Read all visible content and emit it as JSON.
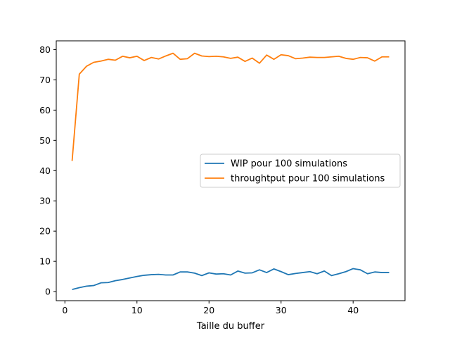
{
  "chart_data": {
    "type": "line",
    "title": "",
    "xlabel": "Taille du buffer",
    "ylabel": "",
    "xlim": [
      -1.2,
      47.2
    ],
    "ylim": [
      -3.0,
      82.9
    ],
    "xticks": [
      0,
      10,
      20,
      30,
      40
    ],
    "yticks": [
      0,
      10,
      20,
      30,
      40,
      50,
      60,
      70,
      80
    ],
    "grid": false,
    "legend_position": "center-right",
    "x": [
      1,
      2,
      3,
      4,
      5,
      6,
      7,
      8,
      9,
      10,
      11,
      12,
      13,
      14,
      15,
      16,
      17,
      18,
      19,
      20,
      21,
      22,
      23,
      24,
      25,
      26,
      27,
      28,
      29,
      30,
      31,
      32,
      33,
      34,
      35,
      36,
      37,
      38,
      39,
      40,
      41,
      42,
      43,
      44,
      45
    ],
    "series": [
      {
        "name": "WIP pour 100 simulations",
        "color": "#1f77b4",
        "values": [
          0.7,
          1.3,
          1.8,
          2.0,
          2.9,
          3.0,
          3.6,
          4.0,
          4.5,
          5.0,
          5.4,
          5.6,
          5.7,
          5.5,
          5.5,
          6.5,
          6.5,
          6.1,
          5.3,
          6.2,
          5.8,
          5.9,
          5.5,
          6.8,
          6.1,
          6.2,
          7.2,
          6.3,
          7.5,
          6.6,
          5.6,
          6.0,
          6.3,
          6.6,
          5.9,
          6.8,
          5.3,
          5.9,
          6.6,
          7.6,
          7.2,
          5.9,
          6.5,
          6.3,
          6.3
        ]
      },
      {
        "name": "throughtput pour 100 simulations",
        "color": "#ff7f0e",
        "values": [
          43.2,
          71.9,
          74.5,
          75.8,
          76.2,
          76.8,
          76.5,
          77.8,
          77.3,
          77.8,
          76.4,
          77.4,
          76.9,
          77.9,
          78.8,
          76.8,
          77.0,
          78.8,
          77.9,
          77.7,
          77.8,
          77.6,
          77.1,
          77.5,
          76.1,
          77.2,
          75.5,
          78.2,
          76.8,
          78.3,
          78.0,
          77.0,
          77.2,
          77.5,
          77.4,
          77.4,
          77.6,
          77.8,
          77.1,
          76.8,
          77.4,
          77.3,
          76.2,
          77.6,
          77.6
        ]
      }
    ]
  }
}
